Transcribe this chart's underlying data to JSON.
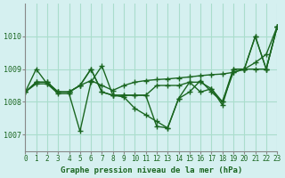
{
  "title": "Graphe pression niveau de la mer (hPa)",
  "bg_color": "#d5f0f0",
  "grid_color": "#aaddcc",
  "line_color": "#1a6620",
  "xlim": [
    0,
    23
  ],
  "ylim": [
    1006.5,
    1011.0
  ],
  "yticks": [
    1007,
    1008,
    1009,
    1010
  ],
  "xticks": [
    0,
    1,
    2,
    3,
    4,
    5,
    6,
    7,
    8,
    9,
    10,
    11,
    12,
    13,
    14,
    15,
    16,
    17,
    18,
    19,
    20,
    21,
    22,
    23
  ],
  "series": [
    [
      1008.3,
      1009.0,
      1008.55,
      1008.25,
      1008.25,
      1007.1,
      1008.6,
      1009.1,
      1008.2,
      1008.15,
      1007.8,
      1007.6,
      1007.4,
      1007.2,
      1008.1,
      1008.3,
      1008.65,
      1008.3,
      1008.0,
      1009.0,
      1009.0,
      1010.0,
      1009.0,
      1010.3
    ],
    [
      1008.3,
      1008.55,
      1008.55,
      1008.3,
      1008.3,
      1008.5,
      1008.65,
      1008.5,
      1008.35,
      1008.5,
      1008.6,
      1008.65,
      1008.68,
      1008.7,
      1008.73,
      1008.76,
      1008.8,
      1008.83,
      1008.85,
      1008.9,
      1009.0,
      1009.2,
      1009.45,
      1010.3
    ],
    [
      1008.3,
      1008.6,
      1008.6,
      1008.3,
      1008.3,
      1008.5,
      1009.0,
      1008.3,
      1008.2,
      1008.2,
      1008.2,
      1008.2,
      1008.5,
      1008.5,
      1008.5,
      1008.6,
      1008.6,
      1008.4,
      1008.0,
      1008.9,
      1009.0,
      1009.0,
      1009.0,
      1010.3
    ],
    [
      1008.3,
      1008.6,
      1008.6,
      1008.3,
      1008.3,
      1008.5,
      1009.0,
      1008.3,
      1008.2,
      1008.2,
      1008.2,
      1008.2,
      1007.25,
      1007.2,
      1008.1,
      1008.6,
      1008.3,
      1008.4,
      1007.9,
      1009.0,
      1009.0,
      1010.0,
      1009.0,
      1010.3
    ]
  ]
}
